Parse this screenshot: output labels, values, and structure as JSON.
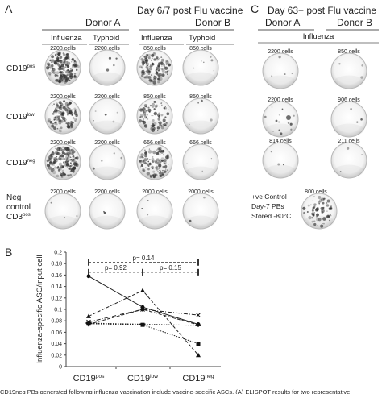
{
  "panel_a": {
    "letter": "A",
    "title": "Day 6/7 post Flu vaccine",
    "donors": [
      "Donor A",
      "Donor B"
    ],
    "columns": [
      "Influenza",
      "Typhoid",
      "Influenza",
      "Typhoid"
    ],
    "rows": [
      {
        "label": "CD19",
        "sup": "pos",
        "cells": [
          "2200 cells",
          "2200 cells",
          "850 cells",
          "850 cells"
        ]
      },
      {
        "label": "CD19",
        "sup": "low",
        "cells": [
          "2200 cells",
          "2200 cells",
          "850 cells",
          "850 cells"
        ]
      },
      {
        "label": "CD19",
        "sup": "neg",
        "cells": [
          "2200 cells",
          "2200 cells",
          "666 cells",
          "666 cells"
        ]
      },
      {
        "label_lines": [
          "Neg",
          "control",
          "CD3"
        ],
        "sup": "pos",
        "cells": [
          "2200 cells",
          "2200 cells",
          "2000 cells",
          "2000 cells"
        ]
      }
    ]
  },
  "panel_c": {
    "letter": "C",
    "title": "Day 63+ post Flu vaccine",
    "donors": [
      "Donor A",
      "Donor B"
    ],
    "column": "Influenza",
    "cells": [
      [
        "2200 cells",
        "850 cells"
      ],
      [
        "2200 cells",
        "906 cells"
      ],
      [
        "814 cells",
        "211 cells"
      ]
    ],
    "control_lines": [
      "+ve Control",
      "Day-7 PBs",
      "Stored -80°C"
    ],
    "control_cells": "800 cells"
  },
  "panel_b": {
    "letter": "B"
  },
  "chart_data": {
    "type": "line",
    "categories": [
      "CD19pos",
      "CD19low",
      "CD19neg"
    ],
    "category_labels": [
      {
        "base": "CD19",
        "sup": "pos"
      },
      {
        "base": "CD19",
        "sup": "low"
      },
      {
        "base": "CD19",
        "sup": "neg"
      }
    ],
    "ylabel": "Influenza-specific ASC/input cell",
    "ylim": [
      0,
      0.2
    ],
    "yticks": [
      "0",
      "0.02",
      "0.04",
      "0.06",
      "0.08",
      "0.1",
      "0.12",
      "0.14",
      "0.16",
      "0.18",
      "0.2"
    ],
    "series": [
      {
        "marker": "circle",
        "style": "solid",
        "values": [
          0.158,
          0.104,
          0.074
        ]
      },
      {
        "marker": "triangle",
        "style": "dashed",
        "values": [
          0.088,
          0.133,
          0.02
        ]
      },
      {
        "marker": "x",
        "style": "dashdot",
        "values": [
          0.078,
          0.1,
          0.09
        ]
      },
      {
        "marker": "diamond",
        "style": "dashed",
        "values": [
          0.074,
          0.1,
          0.073
        ]
      },
      {
        "marker": "square",
        "style": "dotted",
        "values": [
          0.075,
          0.073,
          0.04
        ]
      },
      {
        "marker": "bar",
        "style": "dotted",
        "values": [
          0.076,
          0.074,
          0.072
        ]
      }
    ],
    "annotations": [
      {
        "text": "p= 0.14",
        "from": 0,
        "to": 2,
        "y": 0.182
      },
      {
        "text": "p= 0.92",
        "from": 0,
        "to": 1,
        "y": 0.165
      },
      {
        "text": "p= 0.15",
        "from": 1,
        "to": 2,
        "y": 0.165
      }
    ]
  },
  "caption": "CD19neg PBs generated following influenza vaccination include vaccine-specific ASCs. (A) ELISPOT results for two representative"
}
